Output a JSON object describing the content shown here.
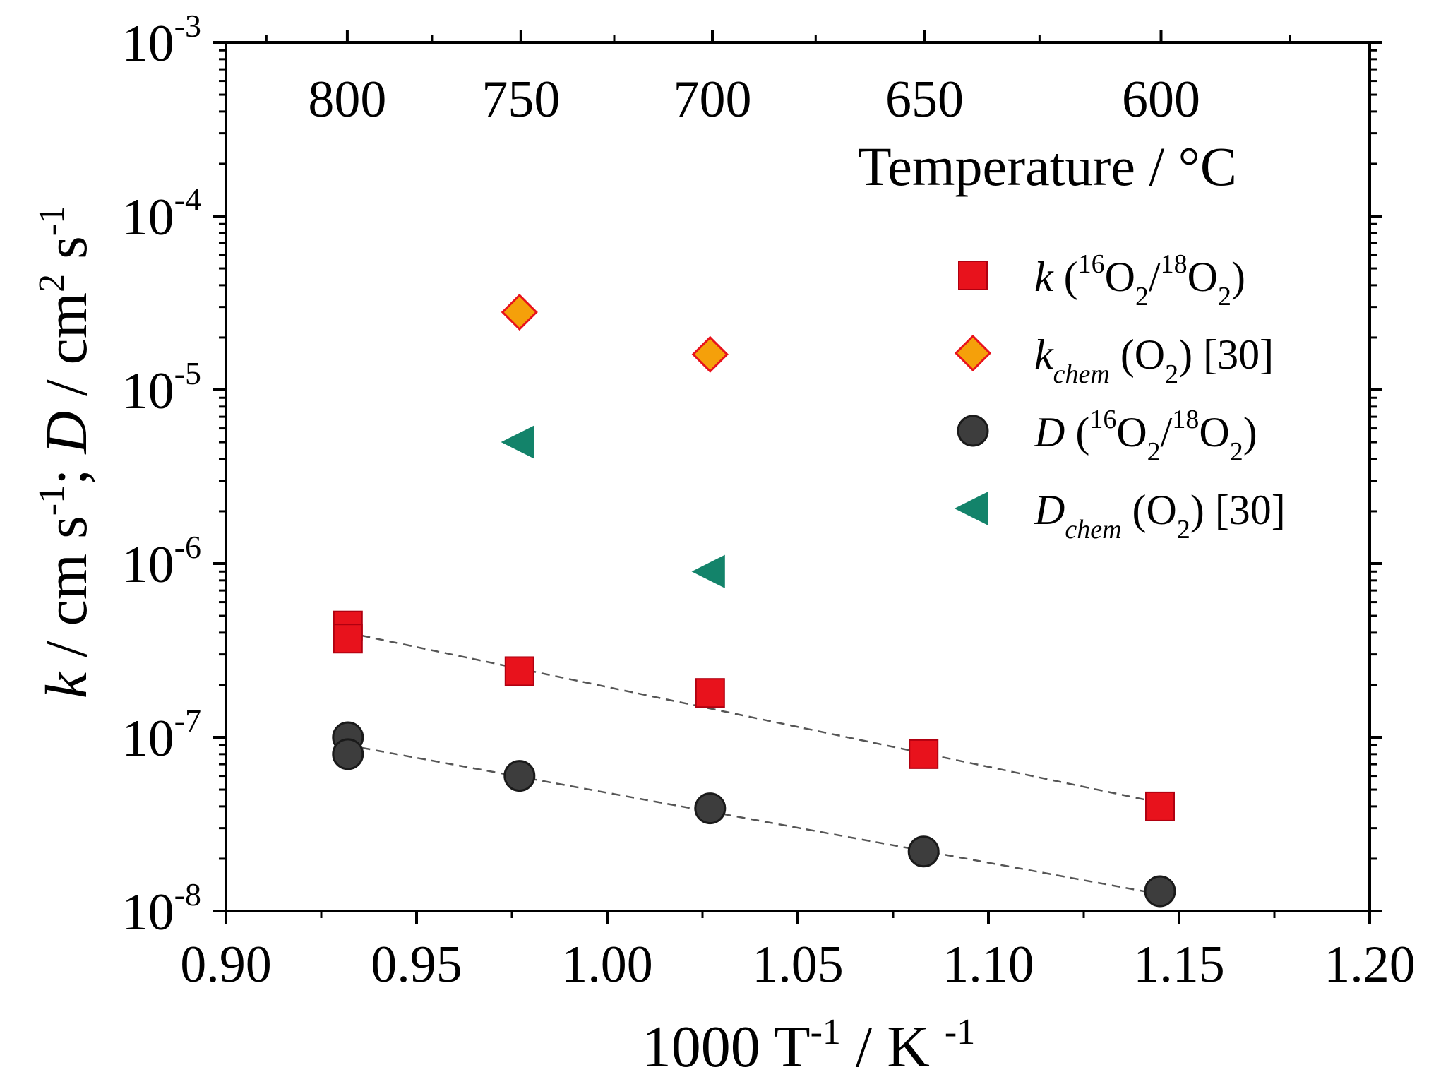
{
  "colors": {
    "k_fill": "#e8121c",
    "k_stroke": "#b00010",
    "kchem_fill": "#f5a00a",
    "kchem_stroke": "#e8121c",
    "D_fill": "#3d3d3d",
    "D_stroke": "#1a1a1a",
    "Dchem_fill": "#13836a",
    "fit_line": "#555555",
    "axis": "#000000"
  },
  "chart_data": {
    "type": "scatter",
    "x_scale": "linear",
    "y_scale": "log",
    "xlabel": {
      "base": "1000 T",
      "sup1": "-1",
      "mid": " / K ",
      "sup2": "-1"
    },
    "ylabel": {
      "k": "k",
      "part1": " / cm s",
      "sup1": "-1",
      "sep": "; ",
      "D": "D",
      "part2": " / cm",
      "sup2": "2",
      "part3": " s",
      "sup3": "-1"
    },
    "top_axis_label": "Temperature / °C",
    "xlim": [
      0.9,
      1.2
    ],
    "ylim": [
      1e-08,
      0.001
    ],
    "x_ticks": [
      0.9,
      0.95,
      1.0,
      1.05,
      1.1,
      1.15,
      1.2
    ],
    "x_tick_labels": [
      "0.90",
      "0.95",
      "1.00",
      "1.05",
      "1.10",
      "1.15",
      "1.20"
    ],
    "y_ticks": [
      {
        "value": 1e-08,
        "base": "10",
        "exp": "-8"
      },
      {
        "value": 1e-07,
        "base": "10",
        "exp": "-7"
      },
      {
        "value": 1e-06,
        "base": "10",
        "exp": "-6"
      },
      {
        "value": 1e-05,
        "base": "10",
        "exp": "-5"
      },
      {
        "value": 0.0001,
        "base": "10",
        "exp": "-4"
      },
      {
        "value": 0.001,
        "base": "10",
        "exp": "-3"
      }
    ],
    "top_ticks": [
      {
        "celsius": 800,
        "label": "800"
      },
      {
        "celsius": 750,
        "label": "750"
      },
      {
        "celsius": 700,
        "label": "700"
      },
      {
        "celsius": 650,
        "label": "650"
      },
      {
        "celsius": 600,
        "label": "600"
      }
    ],
    "series": [
      {
        "key": "k",
        "marker": "square",
        "legend": {
          "main": "k",
          "sub": "",
          "rest": " (",
          "sup_a": "16",
          "o_a": "O",
          "sub_a": "2",
          "slash": "/",
          "sup_b": "18",
          "o_b": "O",
          "sub_b": "2",
          "close": ")",
          "ref": ""
        },
        "points": [
          [
            0.932,
            4.4e-07
          ],
          [
            0.932,
            3.7e-07
          ],
          [
            0.977,
            2.4e-07
          ],
          [
            1.027,
            1.8e-07
          ],
          [
            1.083,
            8e-08
          ],
          [
            1.145,
            4e-08
          ]
        ]
      },
      {
        "key": "kchem",
        "marker": "diamond",
        "legend": {
          "main": "k",
          "sub": "chem",
          "rest": " (O",
          "sub_a": "2",
          "close": ")",
          "ref": " [30]"
        },
        "points": [
          [
            0.977,
            2.8e-05
          ],
          [
            1.027,
            1.6e-05
          ]
        ]
      },
      {
        "key": "D",
        "marker": "circle",
        "legend": {
          "main": "D",
          "sub": "",
          "rest": " (",
          "sup_a": "16",
          "o_a": "O",
          "sub_a": "2",
          "slash": "/",
          "sup_b": "18",
          "o_b": "O",
          "sub_b": "2",
          "close": ")",
          "ref": ""
        },
        "points": [
          [
            0.932,
            1e-07
          ],
          [
            0.932,
            8e-08
          ],
          [
            0.977,
            6e-08
          ],
          [
            1.027,
            3.9e-08
          ],
          [
            1.083,
            2.2e-08
          ],
          [
            1.145,
            1.3e-08
          ]
        ]
      },
      {
        "key": "Dchem",
        "marker": "triangle-left",
        "legend": {
          "main": "D",
          "sub": "chem",
          "rest": "  (O",
          "sub_a": "2",
          "close": ")",
          "ref": " [30]"
        },
        "points": [
          [
            0.977,
            5e-06
          ],
          [
            1.027,
            9e-07
          ]
        ]
      }
    ],
    "fit_lines": [
      {
        "key": "k_fit",
        "from": [
          0.932,
          4e-07
        ],
        "to": [
          1.145,
          4.2e-08
        ]
      },
      {
        "key": "D_fit",
        "from": [
          0.932,
          9e-08
        ],
        "to": [
          1.145,
          1.25e-08
        ]
      }
    ]
  }
}
